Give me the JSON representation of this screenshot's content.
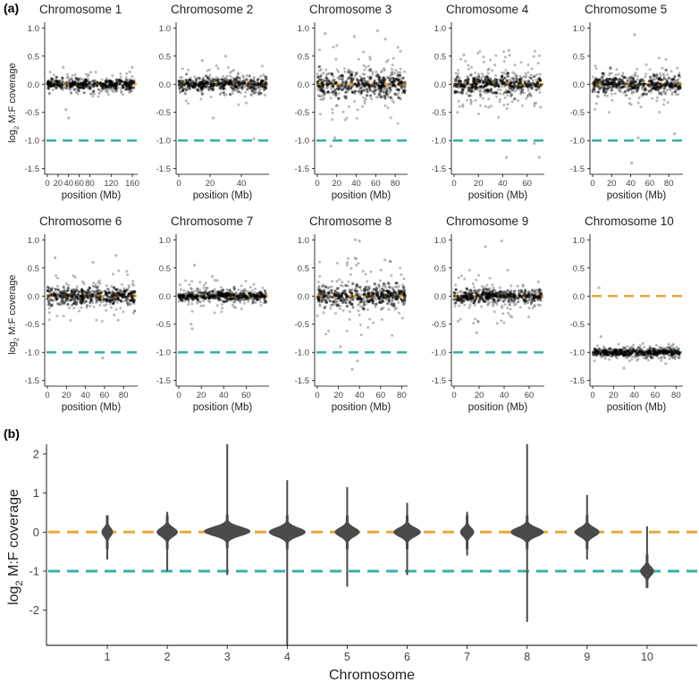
{
  "panel_labels": {
    "a": "(a)",
    "b": "(b)"
  },
  "colors": {
    "point": "#000000",
    "ref_zero": "#E8A93C",
    "ref_minus_one": "#3AAFA9",
    "violin": "#4a4a4a",
    "axis": "#000000",
    "text": "#222222"
  },
  "chart_data": [
    {
      "type": "scatter-grid",
      "ylabel_prefix": "log",
      "ylabel_sub": "2",
      "ylabel_suffix": " M:F coverage",
      "xlabel": "position (Mb)",
      "ylim": [
        -1.6,
        1.1
      ],
      "yticks": [
        -1.5,
        -1.0,
        -0.5,
        0.0,
        0.5,
        1.0
      ],
      "ytick_labels": [
        "-1.5",
        "-1.0",
        "-0.5",
        "0.0",
        "0.5",
        "1.0"
      ],
      "ref_lines": [
        0.0,
        -1.0
      ],
      "panels": [
        {
          "title": "Chromosome 1",
          "xmax": 165,
          "xticks": [
            0,
            20,
            40,
            60,
            80,
            120,
            160
          ],
          "center": 0.0,
          "sd": 0.07,
          "spread": 0.22,
          "spikes": [
            [
              40,
              -0.6
            ],
            [
              35,
              -0.45
            ],
            [
              30,
              0.3
            ],
            [
              160,
              0.3
            ],
            [
              155,
              0.22
            ]
          ]
        },
        {
          "title": "Chromosome 2",
          "xmax": 56,
          "xticks": [
            0,
            20,
            40
          ],
          "center": 0.0,
          "sd": 0.09,
          "spread": 0.35,
          "spikes": [
            [
              22,
              -0.6
            ],
            [
              48,
              -0.97
            ],
            [
              30,
              0.5
            ],
            [
              15,
              0.42
            ]
          ]
        },
        {
          "title": "Chromosome 3",
          "xmax": 90,
          "xticks": [
            0,
            20,
            40,
            60,
            80
          ],
          "center": 0.0,
          "sd": 0.16,
          "spread": 0.7,
          "spikes": [
            [
              14,
              -1.1
            ],
            [
              18,
              -0.95
            ],
            [
              62,
              0.95
            ],
            [
              70,
              0.8
            ],
            [
              38,
              0.85
            ],
            [
              8,
              0.9
            ]
          ]
        },
        {
          "title": "Chromosome 4",
          "xmax": 72,
          "xticks": [
            0,
            20,
            40,
            60
          ],
          "center": 0.0,
          "sd": 0.13,
          "spread": 0.6,
          "spikes": [
            [
              43,
              -1.3
            ],
            [
              66,
              -1.05
            ],
            [
              70,
              -1.3
            ],
            [
              45,
              0.6
            ],
            [
              8,
              0.52
            ]
          ]
        },
        {
          "title": "Chromosome 5",
          "xmax": 92,
          "xticks": [
            0,
            20,
            40,
            60,
            80
          ],
          "center": 0.0,
          "sd": 0.11,
          "spread": 0.55,
          "spikes": [
            [
              41,
              -1.4
            ],
            [
              44,
              0.88
            ],
            [
              48,
              -0.95
            ],
            [
              86,
              -0.88
            ]
          ]
        },
        {
          "title": "Chromosome 6",
          "xmax": 92,
          "xticks": [
            0,
            20,
            40,
            60,
            80
          ],
          "center": 0.0,
          "sd": 0.11,
          "spread": 0.45,
          "spikes": [
            [
              58,
              -1.1
            ],
            [
              72,
              0.72
            ],
            [
              8,
              0.68
            ],
            [
              48,
              0.6
            ]
          ]
        },
        {
          "title": "Chromosome 7",
          "xmax": 78,
          "xticks": [
            0,
            20,
            40,
            60
          ],
          "center": 0.0,
          "sd": 0.07,
          "spread": 0.3,
          "spikes": [
            [
              12,
              -0.58
            ],
            [
              11,
              -0.5
            ],
            [
              14,
              0.55
            ],
            [
              30,
              0.35
            ]
          ]
        },
        {
          "title": "Chromosome 8",
          "xmax": 83,
          "xticks": [
            0,
            20,
            40,
            60,
            80
          ],
          "center": 0.0,
          "sd": 0.14,
          "spread": 0.7,
          "spikes": [
            [
              33,
              -1.3
            ],
            [
              40,
              0.98
            ],
            [
              36,
              1.0
            ],
            [
              38,
              -1.15
            ],
            [
              22,
              -0.9
            ]
          ]
        },
        {
          "title": "Chromosome 9",
          "xmax": 70,
          "xticks": [
            0,
            20,
            40,
            60
          ],
          "center": 0.0,
          "sd": 0.09,
          "spread": 0.5,
          "spikes": [
            [
              25,
              0.88
            ],
            [
              38,
              0.98
            ],
            [
              18,
              -0.65
            ]
          ]
        },
        {
          "title": "Chromosome 10",
          "xmax": 84,
          "xticks": [
            0,
            20,
            40,
            60,
            80
          ],
          "center": -1.0,
          "sd": 0.05,
          "spread": 0.15,
          "spikes": [
            [
              6,
              0.15
            ],
            [
              8,
              -0.72
            ],
            [
              30,
              -1.28
            ],
            [
              70,
              -1.2
            ]
          ]
        }
      ]
    },
    {
      "type": "violin",
      "xlabel": "Chromosome",
      "ylabel_prefix": "log",
      "ylabel_sub": "2",
      "ylabel_suffix": " M:F coverage",
      "ylim": [
        -2.9,
        2.25
      ],
      "yticks": [
        -2,
        -1,
        0,
        1,
        2
      ],
      "ytick_labels": [
        "-2",
        "-1",
        "0",
        "1",
        "2"
      ],
      "ref_lines": [
        0,
        -1
      ],
      "categories": [
        "1",
        "2",
        "3",
        "4",
        "5",
        "6",
        "7",
        "8",
        "9",
        "10"
      ],
      "center": [
        0.0,
        0.0,
        0.02,
        0.0,
        0.0,
        0.0,
        0.0,
        0.0,
        0.0,
        -1.0
      ],
      "min": [
        -0.7,
        -1.0,
        -1.1,
        -2.9,
        -1.4,
        -1.1,
        -0.6,
        -2.3,
        -0.7,
        -1.35
      ],
      "max": [
        0.35,
        0.52,
        2.25,
        1.33,
        1.15,
        0.75,
        0.52,
        2.25,
        0.95,
        0.15
      ],
      "core_halfwidth": [
        0.09,
        0.17,
        0.38,
        0.3,
        0.2,
        0.22,
        0.11,
        0.27,
        0.2,
        0.11
      ]
    }
  ]
}
